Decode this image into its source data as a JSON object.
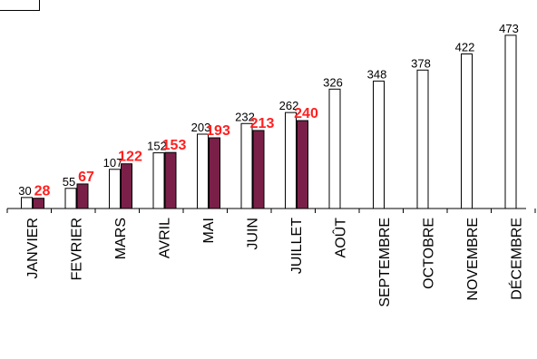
{
  "chart_data": {
    "type": "bar",
    "categories": [
      "JANVIER",
      "FEVRIER",
      "MARS",
      "AVRIL",
      "MAI",
      "JUIN",
      "JUILLET",
      "AOÛT",
      "SEPTEMBRE",
      "OCTOBRE",
      "NOVEMBRE",
      "DÉCEMBRE"
    ],
    "series": [
      {
        "values": [
          30,
          55,
          107,
          152,
          203,
          232,
          262,
          326,
          348,
          378,
          422,
          473
        ],
        "color": "#ffffff",
        "label_color": "#000000"
      },
      {
        "values": [
          28,
          67,
          122,
          153,
          193,
          213,
          240,
          null,
          null,
          null,
          null,
          null
        ],
        "color": "#7a2048",
        "label_color": "#ff2020"
      }
    ],
    "ylim": [
      0,
      500
    ],
    "grid": false,
    "legend": "top-left"
  }
}
